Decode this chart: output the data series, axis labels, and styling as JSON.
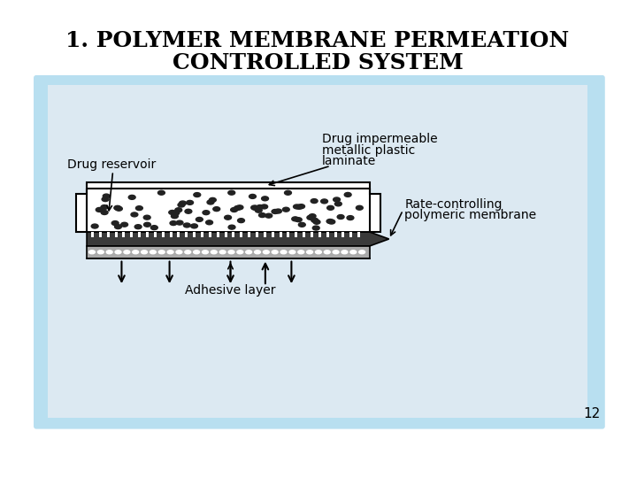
{
  "title_line1": "1. POLYMER MEMBRANE PERMEATION",
  "title_line2": "CONTROLLED SYSTEM",
  "page_number": "12",
  "bg_color": "#ffffff",
  "panel_bg": "#b8dff0",
  "inner_bg": "#d8e8f0",
  "label_drug_impermeable": "Drug impermeable\nmetallic plastic\nlaminate",
  "label_drug_reservoir": "Drug reservoir",
  "label_rate_controlling": "Rate-controlling\npolymeric membrane",
  "label_adhesive": "Adhesive layer",
  "title_fontsize": 18,
  "label_fontsize": 10,
  "page_fontsize": 11
}
